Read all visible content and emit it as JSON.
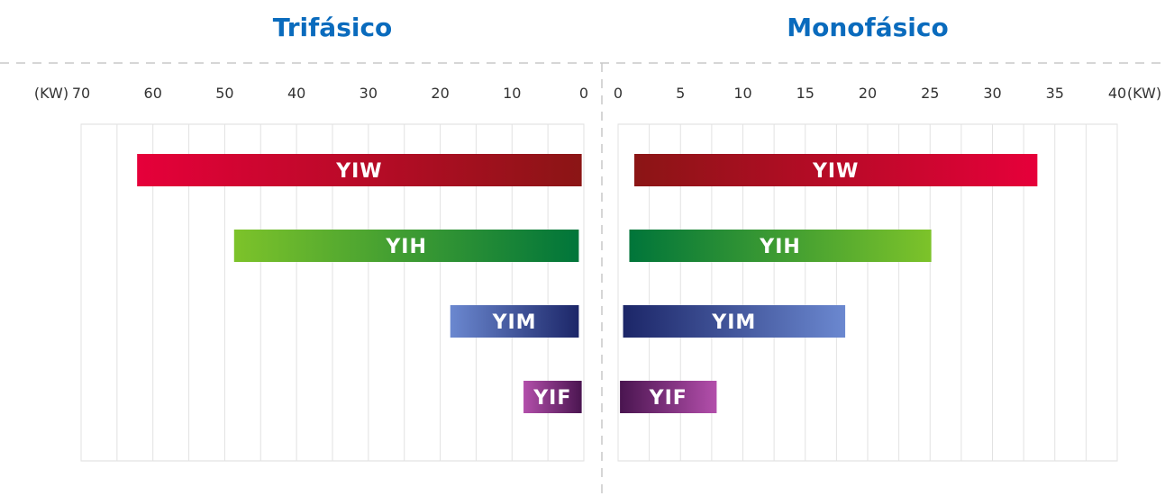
{
  "chart_data": [
    {
      "type": "range-bar",
      "title": "Trifásico",
      "unit": "(KW)",
      "categories": [
        "YIW",
        "YIH",
        "YIM",
        "YIF"
      ],
      "values": [
        [
          0.3,
          62.2
        ],
        [
          0.7,
          48.7
        ],
        [
          0.7,
          18.6
        ],
        [
          0.3,
          8.4
        ]
      ],
      "colors": [
        [
          "#8b1515",
          "#e6003a"
        ],
        [
          "#00753a",
          "#7dc32a"
        ],
        [
          "#1c2668",
          "#6b88d0"
        ],
        [
          "#4a1550",
          "#b34fab"
        ]
      ],
      "xlim": [
        70,
        0
      ],
      "xticks": [
        70,
        60,
        50,
        40,
        30,
        20,
        10,
        0
      ],
      "minor_xticks": [
        65,
        55,
        45,
        35,
        25,
        15,
        5
      ],
      "grid": true
    },
    {
      "type": "range-bar",
      "title": "Monofásico",
      "unit": "(KW)",
      "categories": [
        "YIW",
        "YIH",
        "YIM",
        "YIF"
      ],
      "values": [
        [
          1.3,
          33.6
        ],
        [
          0.9,
          25.1
        ],
        [
          0.4,
          18.2
        ],
        [
          0.15,
          7.9
        ]
      ],
      "colors": [
        [
          "#8b1515",
          "#e6003a"
        ],
        [
          "#00753a",
          "#7dc32a"
        ],
        [
          "#1c2668",
          "#6b88d0"
        ],
        [
          "#4a1550",
          "#b34fab"
        ]
      ],
      "xlim": [
        0,
        40
      ],
      "xticks": [
        0,
        5,
        10,
        15,
        20,
        25,
        30,
        35,
        40
      ],
      "minor_xticks": [
        2.5,
        7.5,
        12.5,
        17.5,
        22.5,
        27.5,
        32.5,
        37.5
      ],
      "grid": true
    }
  ]
}
